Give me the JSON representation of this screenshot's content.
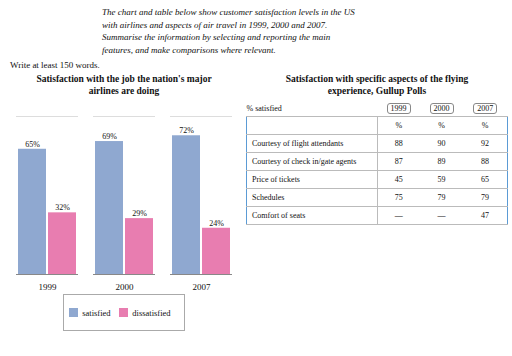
{
  "chart_data": {
    "type": "bar",
    "title": "Satisfaction with the job the nation's major\nairlines are doing",
    "categories": [
      "1999",
      "2000",
      "2007"
    ],
    "series": [
      {
        "name": "satisfied",
        "color": "#8fa8d0",
        "values": [
          65,
          69,
          72
        ],
        "value_labels": [
          "65%",
          "69%",
          "72%"
        ]
      },
      {
        "name": "dissatisfied",
        "color": "#e87db0",
        "values": [
          32,
          29,
          24
        ],
        "value_labels": [
          "32%",
          "29%",
          "24%"
        ]
      }
    ],
    "ylim": [
      0,
      82
    ],
    "yticks": [],
    "tick_labels": "x",
    "data_labels": true,
    "grid": false,
    "legend": "bottom"
  },
  "instructions": "The chart and table below show customer satisfaction levels in the US\nwith airlines and aspects of air travel in 1999, 2000 and 2007.\nSummarise the information by selecting and reporting the main\nfeatures, and make comparisons where relevant.",
  "task": "Write at least 150 words.",
  "table": {
    "title": "Satisfaction with specific aspects of the flying\nexperience, Gullup Polls",
    "label": "% satisfied",
    "columns": [
      "1999",
      "2000",
      "2007"
    ],
    "subheader": [
      "",
      "%",
      "%",
      "%"
    ],
    "rows": [
      [
        "Courtesy of flight attendants",
        "88",
        "90",
        "92"
      ],
      [
        "Courtesy of check in/gate agents",
        "87",
        "89",
        "88"
      ],
      [
        "Price of tickets",
        "45",
        "59",
        "65"
      ],
      [
        "Schedules",
        "75",
        "79",
        "79"
      ],
      [
        "Comfort of seats",
        "—",
        "—",
        "47"
      ]
    ]
  }
}
